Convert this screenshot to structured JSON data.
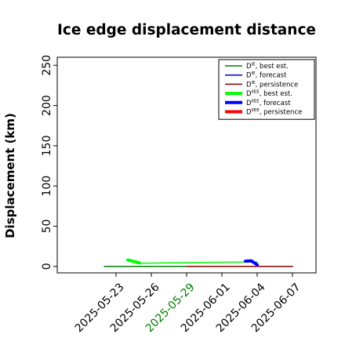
{
  "chart_data": {
    "type": "line",
    "title": "Ice edge displacement distance",
    "ylabel": "Displacement (km)",
    "xlabel": "",
    "ylim": [
      -8,
      260
    ],
    "xlim": [
      "2025-05-18",
      "2025-06-09"
    ],
    "yticks": [
      0,
      50,
      100,
      150,
      200,
      250
    ],
    "xticks": [
      "2025-05-23",
      "2025-05-26",
      "2025-05-29",
      "2025-06-01",
      "2025-06-04",
      "2025-06-07"
    ],
    "xtick_colors": [
      "#000000",
      "#000000",
      "#008000",
      "#000000",
      "#000000",
      "#000000"
    ],
    "grid": false,
    "legend_position": "top-right",
    "series": [
      {
        "name": "D^IE, best est.",
        "color": "#008000",
        "width": 1.5,
        "x": [
          "2025-05-22",
          "2025-06-07"
        ],
        "y": [
          0,
          0
        ]
      },
      {
        "name": "D^IE, forecast",
        "color": "#0000cc",
        "width": 1.5,
        "x": [],
        "y": []
      },
      {
        "name": "D^IE, persistence",
        "color": "#8b0000",
        "width": 1.5,
        "x": [
          "2025-05-29",
          "2025-06-07"
        ],
        "y": [
          0,
          0
        ]
      },
      {
        "name": "D^IIEE, best est.",
        "color": "#00ff00",
        "width": 1.5,
        "x": [
          "2025-05-24",
          "2025-05-25",
          "2025-06-03",
          "2025-06-04"
        ],
        "y": [
          8,
          4,
          5.5,
          5.5
        ]
      },
      {
        "name": "D^IIEE, forecast",
        "color": "#0000ff",
        "width": 4,
        "x": [
          "2025-06-03",
          "2025-06-03.5",
          "2025-06-04"
        ],
        "y": [
          6.5,
          7,
          2
        ]
      },
      {
        "name": "D^IIEE, persistence",
        "color": "#ff0000",
        "width": 4,
        "x": [],
        "y": []
      }
    ],
    "extra_segments": [
      {
        "color": "#00ff00",
        "width": 4,
        "x": [
          "2025-05-24",
          "2025-05-25"
        ],
        "y": [
          8,
          4.5
        ]
      }
    ],
    "legend": [
      {
        "sym": "D",
        "sup": "IE",
        "rest": ", best est.",
        "color": "#008000",
        "width": 1.5
      },
      {
        "sym": "D",
        "sup": "IE",
        "rest": ", forecast",
        "color": "#0000cc",
        "width": 1.5
      },
      {
        "sym": "D",
        "sup": "IE",
        "rest": ", persistence",
        "color": "#8b0000",
        "width": 1.5
      },
      {
        "sym": "D",
        "sup": "IIEE",
        "rest": ", best est.",
        "color": "#00ff00",
        "width": 4
      },
      {
        "sym": "D",
        "sup": "IIEE",
        "rest": ", forecast",
        "color": "#0000ff",
        "width": 4
      },
      {
        "sym": "D",
        "sup": "IIEE",
        "rest": ", persistence",
        "color": "#ff0000",
        "width": 4
      }
    ]
  }
}
